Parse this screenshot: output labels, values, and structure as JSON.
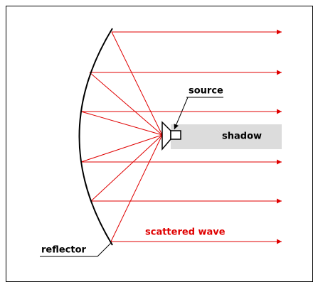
{
  "labels": {
    "source": "source",
    "shadow": "shadow",
    "scattered_wave": "scattered wave",
    "reflector": "reflector"
  }
}
